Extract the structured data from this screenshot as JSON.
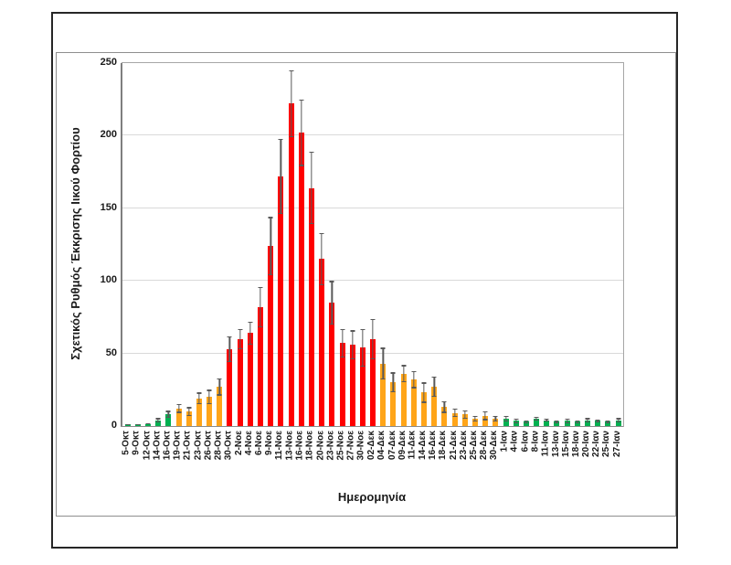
{
  "figure": {
    "outer_border_color": "#262626",
    "chart_border_color": "#8F8F8F",
    "background": "#FFFFFF"
  },
  "chart_data": {
    "type": "bar",
    "title": "",
    "xlabel": "Ημερομηνία",
    "ylabel": "Σχετικός Ρυθμός Έκκρισης Ιικού Φορτίου",
    "ylim": [
      0,
      250
    ],
    "yticks": [
      0,
      50,
      100,
      150,
      200,
      250
    ],
    "grid": true,
    "legend": false,
    "error_bars": true,
    "gridline_color": "#D9D9D9",
    "error_bar_color": "#595959",
    "bar_color_map": {
      "green": "#00B050",
      "orange": "#FFA519",
      "red": "#FF0000"
    },
    "categories": [
      "5-Οκτ",
      "9-Οκτ",
      "12-Οκτ",
      "14-Οκτ",
      "16-Οκτ",
      "19-Οκτ",
      "21-Οκτ",
      "23-Οκτ",
      "26-Οκτ",
      "28-Οκτ",
      "30-Οκτ",
      "2-Νοε",
      "4-Νοε",
      "6-Νοε",
      "9-Νοε",
      "11-Νοε",
      "13-Νοε",
      "16-Νοε",
      "18-Νοε",
      "20-Νοε",
      "23-Νοε",
      "25-Νοε",
      "27-Νοε",
      "30-Νοε",
      "02-Δεκ",
      "04-Δεκ",
      "07-Δεκ",
      "09-Δεκ",
      "11-Δεκ",
      "14-Δεκ",
      "16-Δεκ",
      "18-Δεκ",
      "21-Δεκ",
      "23-Δεκ",
      "25-Δεκ",
      "28-Δεκ",
      "30-Δεκ",
      "1-Ιαν",
      "4-Ιαν",
      "6-Ιαν",
      "8-Ιαν",
      "11-Ιαν",
      "13-Ιαν",
      "15-Ιαν",
      "18-Ιαν",
      "20-Ιαν",
      "22-Ιαν",
      "25-Ιαν",
      "27-Ιαν"
    ],
    "values": [
      1,
      1,
      1.5,
      4,
      8,
      12,
      10,
      19,
      20,
      27,
      53,
      60,
      64,
      82,
      124,
      172,
      222,
      202,
      164,
      115,
      85,
      57,
      56,
      54,
      60,
      43,
      30,
      36,
      32,
      23,
      27,
      13,
      9,
      8,
      5,
      7,
      5,
      5,
      3.5,
      3,
      5,
      4,
      3,
      3.5,
      3,
      4,
      3.5,
      3,
      4
    ],
    "errors": [
      0.5,
      0.5,
      0.5,
      1.5,
      2.5,
      3,
      3,
      4,
      5,
      6,
      9,
      7,
      8,
      14,
      20,
      26,
      23,
      23,
      25,
      18,
      15,
      10,
      10,
      13,
      14,
      11,
      7,
      6,
      6,
      7,
      7,
      4,
      3,
      3,
      2,
      3,
      2,
      2,
      1.5,
      1,
      1.5,
      1,
      1,
      1.5,
      1,
      1.5,
      1,
      1,
      1.5
    ],
    "bar_colors": [
      "green",
      "green",
      "green",
      "green",
      "green",
      "orange",
      "orange",
      "orange",
      "orange",
      "orange",
      "red",
      "red",
      "red",
      "red",
      "red",
      "red",
      "red",
      "red",
      "red",
      "red",
      "red",
      "red",
      "red",
      "red",
      "red",
      "orange",
      "orange",
      "orange",
      "orange",
      "orange",
      "orange",
      "orange",
      "orange",
      "orange",
      "orange",
      "orange",
      "orange",
      "green",
      "green",
      "green",
      "green",
      "green",
      "green",
      "green",
      "green",
      "green",
      "green",
      "green",
      "green"
    ]
  }
}
